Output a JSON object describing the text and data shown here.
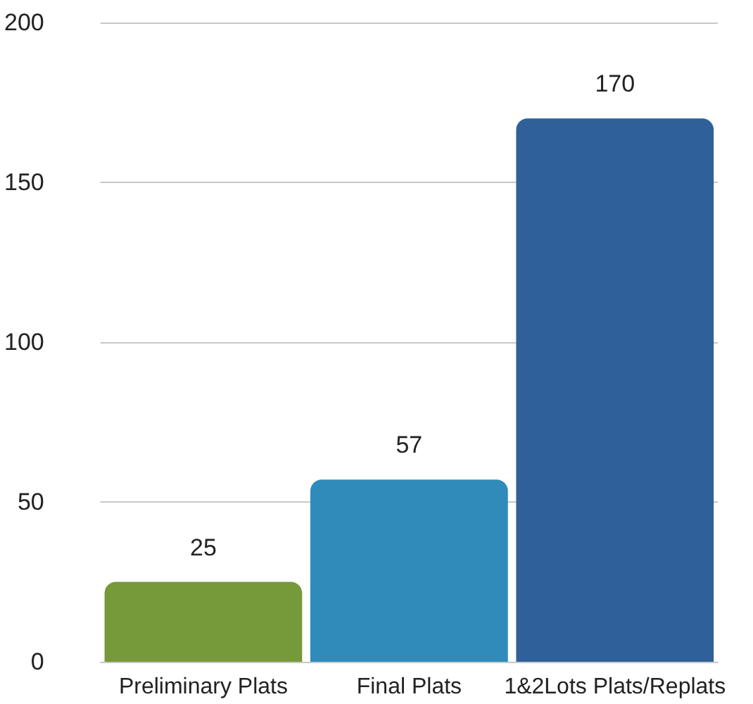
{
  "chart_data": {
    "type": "bar",
    "categories": [
      "Preliminary Plats",
      "Final Plats",
      "1&2Lots Plats/Replats"
    ],
    "values": [
      25,
      57,
      170
    ],
    "colors": [
      "#76993a",
      "#2e8bba",
      "#2f6099"
    ],
    "ylim": [
      0,
      200
    ],
    "yticks": [
      0,
      50,
      100,
      150,
      200
    ],
    "grid": true,
    "data_labels": true
  }
}
